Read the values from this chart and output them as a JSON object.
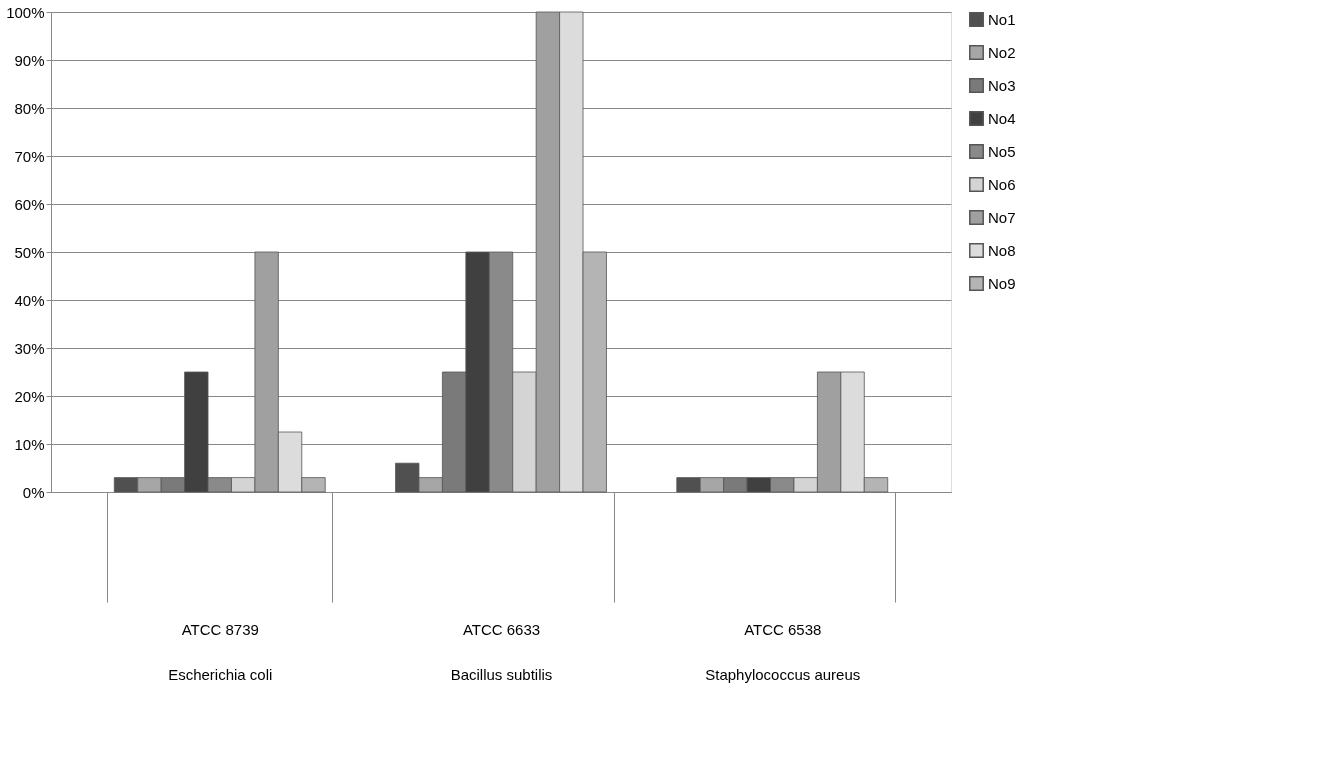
{
  "chart_data": {
    "type": "bar",
    "categories": [
      "ATCC 8739\nEscherichia coli",
      "ATCC 6633\nBacillus subtilis",
      "ATCC 6538\nStaphylococcus aureus"
    ],
    "series": [
      {
        "name": "No1",
        "color": "#505050",
        "values": [
          3,
          6,
          3
        ]
      },
      {
        "name": "No2",
        "color": "#a6a6a6",
        "values": [
          3,
          3,
          3
        ]
      },
      {
        "name": "No3",
        "color": "#7a7a7a",
        "values": [
          3,
          25,
          3
        ]
      },
      {
        "name": "No4",
        "color": "#404040",
        "values": [
          25,
          50,
          3
        ]
      },
      {
        "name": "No5",
        "color": "#8a8a8a",
        "values": [
          3,
          50,
          3
        ]
      },
      {
        "name": "No6",
        "color": "#d4d4d4",
        "values": [
          3,
          25,
          3
        ]
      },
      {
        "name": "No7",
        "color": "#a0a0a0",
        "values": [
          50,
          100,
          25
        ]
      },
      {
        "name": "No8",
        "color": "#dcdcdc",
        "values": [
          12.5,
          100,
          25
        ]
      },
      {
        "name": "No9",
        "color": "#b4b4b4",
        "values": [
          3,
          50,
          3
        ]
      }
    ],
    "ylim": [
      0,
      100
    ],
    "yticks": [
      {
        "value": 0,
        "label": "0%"
      },
      {
        "value": 10,
        "label": "10%"
      },
      {
        "value": 20,
        "label": "20%"
      },
      {
        "value": 30,
        "label": "30%"
      },
      {
        "value": 40,
        "label": "40%"
      },
      {
        "value": 50,
        "label": "50%"
      },
      {
        "value": 60,
        "label": "60%"
      },
      {
        "value": 70,
        "label": "70%"
      },
      {
        "value": 80,
        "label": "80%"
      },
      {
        "value": 90,
        "label": "90%"
      },
      {
        "value": 100,
        "label": "100%"
      }
    ],
    "grid": "y",
    "legend": "right"
  }
}
